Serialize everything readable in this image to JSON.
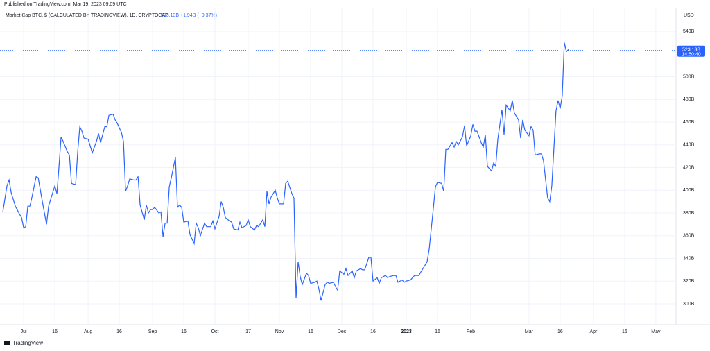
{
  "header": {
    "published": "Published on TradingView.com, Mar 19, 2023 09:09 UTC"
  },
  "legend": {
    "symbol": "Market Cap BTC, $ (CALCULATED BY TRADINGVIEW), 1D, CRYPTOCAP",
    "close": "523.13B",
    "change": "+1.94B (+0.37%)"
  },
  "footer": {
    "brand": "TradingView"
  },
  "chart_data": {
    "type": "line",
    "y_axis_title": "USD",
    "color": "#2962ff",
    "grid": true,
    "last_price": {
      "value": 523.13,
      "label": "523.13B"
    },
    "countdown": "14:50:40",
    "xlim": [
      -9.7,
      313.7
    ],
    "ylim": [
      283.5,
      560.2
    ],
    "yticks": [
      {
        "value": 300,
        "label": "300B"
      },
      {
        "value": 320,
        "label": "320B"
      },
      {
        "value": 340,
        "label": "340B"
      },
      {
        "value": 360,
        "label": "360B"
      },
      {
        "value": 380,
        "label": "380B"
      },
      {
        "value": 400,
        "label": "400B"
      },
      {
        "value": 420,
        "label": "420B"
      },
      {
        "value": 440,
        "label": "440B"
      },
      {
        "value": 460,
        "label": "460B"
      },
      {
        "value": 480,
        "label": "480B"
      },
      {
        "value": 500,
        "label": "500B"
      },
      {
        "value": 540,
        "label": "540B"
      }
    ],
    "xticks": [
      {
        "value": 0,
        "label": "Jul"
      },
      {
        "value": 15,
        "label": "16"
      },
      {
        "value": 31,
        "label": "Aug"
      },
      {
        "value": 46,
        "label": "16"
      },
      {
        "value": 62,
        "label": "Sep"
      },
      {
        "value": 77,
        "label": "16"
      },
      {
        "value": 92,
        "label": "Oct"
      },
      {
        "value": 108,
        "label": "17"
      },
      {
        "value": 123,
        "label": "Nov"
      },
      {
        "value": 138,
        "label": "16"
      },
      {
        "value": 153,
        "label": "Dec"
      },
      {
        "value": 168,
        "label": "16"
      },
      {
        "value": 184,
        "label": "2023"
      },
      {
        "value": 199,
        "label": "16"
      },
      {
        "value": 215,
        "label": "Feb"
      },
      {
        "value": 243,
        "label": "Mar"
      },
      {
        "value": 258,
        "label": "16"
      },
      {
        "value": 274,
        "label": "Apr"
      },
      {
        "value": 289,
        "label": "16"
      },
      {
        "value": 304,
        "label": "May"
      }
    ],
    "x": [
      -10,
      -8,
      -7,
      -6,
      -4,
      -2,
      -1,
      0,
      1,
      2,
      3,
      4,
      6,
      7,
      9,
      11,
      12,
      14,
      15,
      16,
      17,
      18,
      19,
      21,
      22,
      23,
      25,
      26,
      27,
      28,
      29,
      31,
      32,
      33,
      35,
      36,
      37,
      39,
      40,
      41,
      43,
      44,
      45,
      47,
      48,
      49,
      50,
      51,
      53,
      54,
      55,
      56,
      58,
      59,
      60,
      61,
      62,
      63,
      65,
      66,
      67,
      68,
      69,
      70,
      71,
      73,
      74,
      75,
      76,
      77,
      79,
      80,
      82,
      83,
      84,
      85,
      87,
      88,
      90,
      91,
      92,
      94,
      95,
      96,
      97,
      99,
      100,
      101,
      103,
      104,
      105,
      107,
      108,
      109,
      111,
      112,
      113,
      115,
      116,
      117,
      118,
      119,
      121,
      122,
      123,
      125,
      126,
      127,
      129,
      130,
      131,
      132,
      133,
      134,
      136,
      137,
      138,
      140,
      141,
      142,
      143,
      145,
      146,
      147,
      149,
      150,
      151,
      152,
      154,
      155,
      156,
      158,
      159,
      160,
      162,
      163,
      164,
      166,
      167,
      168,
      170,
      171,
      172,
      174,
      175,
      176,
      178,
      179,
      180,
      182,
      183,
      184,
      186,
      187,
      188,
      190,
      191,
      192,
      194,
      195,
      196,
      197,
      198,
      199,
      201,
      202,
      203,
      204,
      206,
      207,
      208,
      209,
      211,
      212,
      213,
      215,
      216,
      217,
      218,
      220,
      221,
      222,
      223,
      225,
      226,
      227,
      228,
      230,
      231,
      232,
      234,
      235,
      236,
      238,
      239,
      240,
      241,
      243,
      244,
      245,
      246,
      248,
      249,
      250,
      252,
      253,
      254,
      256,
      257,
      258,
      259,
      260,
      261,
      262
    ],
    "values": [
      381,
      404,
      409,
      398,
      386,
      379,
      376,
      367,
      368,
      386,
      386,
      394,
      412,
      411,
      390,
      370,
      386,
      398,
      404,
      397,
      421,
      447,
      443,
      434,
      431,
      406,
      405,
      434,
      456,
      452,
      446,
      445,
      439,
      433,
      443,
      450,
      442,
      456,
      456,
      466,
      467,
      462,
      459,
      451,
      443,
      399,
      404,
      410,
      409,
      409,
      412,
      387,
      374,
      387,
      380,
      383,
      383,
      385,
      380,
      381,
      359,
      371,
      371,
      403,
      411,
      429,
      385,
      387,
      385,
      372,
      373,
      361,
      353,
      371,
      367,
      360,
      371,
      368,
      368,
      373,
      366,
      377,
      390,
      385,
      376,
      373,
      372,
      366,
      365,
      372,
      367,
      369,
      374,
      368,
      365,
      369,
      368,
      374,
      368,
      399,
      388,
      394,
      400,
      393,
      388,
      388,
      406,
      408,
      397,
      393,
      305,
      337,
      324,
      317,
      327,
      325,
      318,
      319,
      320,
      313,
      303,
      317,
      319,
      318,
      319,
      315,
      312,
      329,
      326,
      331,
      325,
      329,
      323,
      329,
      331,
      330,
      330,
      341,
      341,
      320,
      323,
      318,
      323,
      325,
      323,
      324,
      325,
      325,
      319,
      321,
      319,
      320,
      321,
      323,
      325,
      325,
      328,
      331,
      337,
      348,
      366,
      384,
      403,
      407,
      406,
      399,
      436,
      436,
      442,
      438,
      443,
      440,
      447,
      457,
      439,
      448,
      458,
      452,
      452,
      442,
      438,
      449,
      421,
      417,
      424,
      421,
      445,
      471,
      449,
      475,
      470,
      479,
      468,
      462,
      446,
      462,
      453,
      448,
      456,
      453,
      431,
      432,
      432,
      426,
      393,
      390,
      404,
      470,
      479,
      472,
      483,
      530,
      522,
      524
    ]
  }
}
